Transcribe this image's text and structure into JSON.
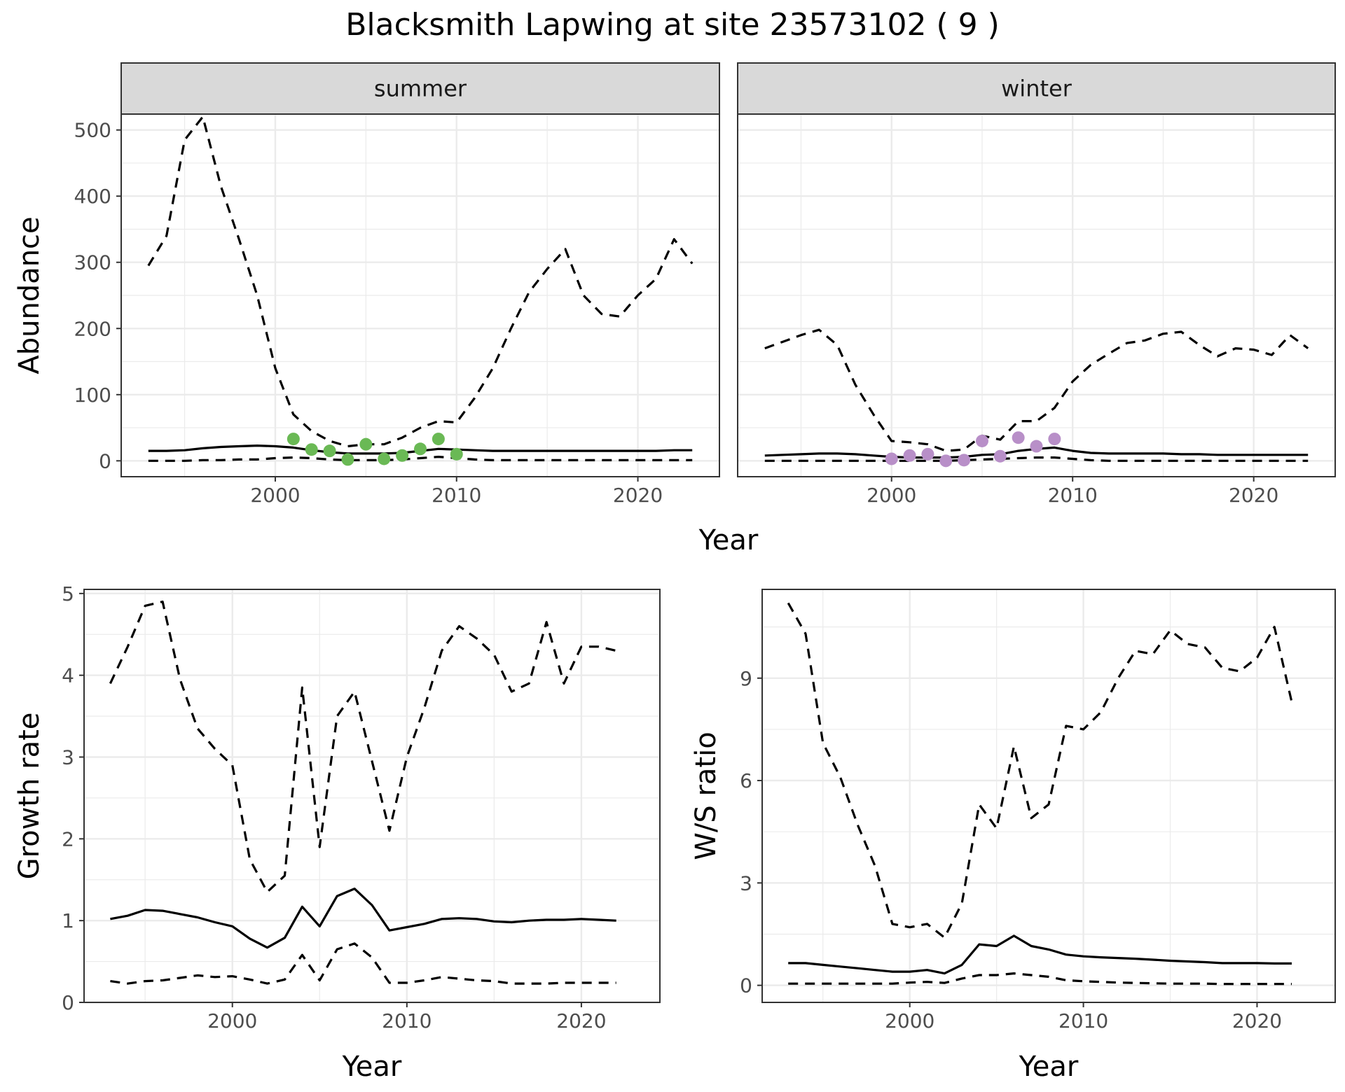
{
  "figure": {
    "title": "Blacksmith Lapwing at site 23573102 ( 9 )",
    "top_xlabel": "Year"
  },
  "colors": {
    "summer_points": "#6ab955",
    "winter_points": "#b88fc8",
    "lines": "#000000"
  },
  "chart_data": [
    {
      "type": "line",
      "panel": "summer",
      "strip": "summer",
      "ylabel": "Abundance",
      "xlabel": "",
      "xlim": [
        1991.5,
        2024.5
      ],
      "ylim": [
        -24,
        524
      ],
      "xticks": [
        2000,
        2010,
        2020
      ],
      "yticks": [
        0,
        100,
        200,
        300,
        400,
        500
      ],
      "grid": true,
      "x": [
        1993,
        1994,
        1995,
        1996,
        1997,
        1998,
        1999,
        2000,
        2001,
        2002,
        2003,
        2004,
        2005,
        2006,
        2007,
        2008,
        2009,
        2010,
        2011,
        2012,
        2013,
        2014,
        2015,
        2016,
        2017,
        2018,
        2019,
        2020,
        2021,
        2022,
        2023
      ],
      "series": [
        {
          "role": "upper",
          "values": [
            295,
            340,
            485,
            520,
            415,
            335,
            250,
            140,
            70,
            45,
            30,
            22,
            25,
            25,
            35,
            50,
            60,
            58,
            95,
            140,
            200,
            255,
            290,
            320,
            250,
            222,
            218,
            250,
            275,
            335,
            298
          ]
        },
        {
          "role": "mean",
          "values": [
            15,
            15,
            16,
            19,
            21,
            22,
            23,
            22,
            20,
            16,
            13,
            11,
            11,
            11,
            12,
            15,
            18,
            17,
            16,
            15,
            15,
            15,
            15,
            15,
            15,
            15,
            15,
            15,
            15,
            16,
            16
          ]
        },
        {
          "role": "lower",
          "values": [
            0,
            0,
            0,
            1,
            1,
            2,
            2,
            4,
            5,
            4,
            2,
            1,
            1,
            1,
            2,
            4,
            6,
            4,
            2,
            1,
            1,
            1,
            1,
            1,
            1,
            1,
            1,
            1,
            1,
            1,
            1
          ]
        }
      ],
      "points": {
        "x": [
          2001,
          2002,
          2003,
          2004,
          2005,
          2006,
          2007,
          2008,
          2009,
          2010
        ],
        "y": [
          33,
          17,
          15,
          2,
          25,
          3,
          8,
          18,
          33,
          10
        ]
      }
    },
    {
      "type": "line",
      "panel": "winter",
      "strip": "winter",
      "ylabel": "",
      "xlabel": "",
      "xlim": [
        1991.5,
        2024.5
      ],
      "ylim": [
        -24,
        524
      ],
      "xticks": [
        2000,
        2010,
        2020
      ],
      "yticks": [],
      "grid": true,
      "x": [
        1993,
        1994,
        1995,
        1996,
        1997,
        1998,
        1999,
        2000,
        2001,
        2002,
        2003,
        2004,
        2005,
        2006,
        2007,
        2008,
        2009,
        2010,
        2011,
        2012,
        2013,
        2014,
        2015,
        2016,
        2017,
        2018,
        2019,
        2020,
        2021,
        2022,
        2023
      ],
      "series": [
        {
          "role": "upper",
          "values": [
            170,
            180,
            190,
            198,
            175,
            115,
            70,
            30,
            28,
            25,
            15,
            17,
            38,
            32,
            60,
            60,
            80,
            120,
            145,
            162,
            178,
            182,
            192,
            195,
            175,
            158,
            170,
            168,
            160,
            190,
            170
          ]
        },
        {
          "role": "mean",
          "values": [
            8,
            9,
            10,
            11,
            11,
            10,
            8,
            6,
            5,
            5,
            5,
            6,
            9,
            10,
            15,
            18,
            20,
            15,
            12,
            11,
            11,
            11,
            11,
            10,
            10,
            9,
            9,
            9,
            9,
            9,
            9
          ]
        },
        {
          "role": "lower",
          "values": [
            0,
            0,
            0,
            0,
            0,
            0,
            0,
            0,
            0,
            0,
            0,
            1,
            2,
            3,
            4,
            5,
            5,
            3,
            1,
            0,
            0,
            0,
            0,
            0,
            0,
            0,
            0,
            0,
            0,
            0,
            0
          ]
        }
      ],
      "points": {
        "x": [
          2000,
          2001,
          2002,
          2003,
          2004,
          2005,
          2006,
          2007,
          2008,
          2009
        ],
        "y": [
          3,
          8,
          10,
          0,
          1,
          30,
          7,
          35,
          22,
          33
        ]
      }
    },
    {
      "type": "line",
      "panel": "growth",
      "ylabel": "Growth rate",
      "xlabel": "Year",
      "xlim": [
        1991.5,
        2024.5
      ],
      "ylim": [
        0,
        5.05
      ],
      "xticks": [
        2000,
        2010,
        2020
      ],
      "yticks": [
        0,
        1,
        2,
        3,
        4,
        5
      ],
      "grid": true,
      "x": [
        1993,
        1994,
        1995,
        1996,
        1997,
        1998,
        1999,
        2000,
        2001,
        2002,
        2003,
        2004,
        2005,
        2006,
        2007,
        2008,
        2009,
        2010,
        2011,
        2012,
        2013,
        2014,
        2015,
        2016,
        2017,
        2018,
        2019,
        2020,
        2021,
        2022
      ],
      "series": [
        {
          "role": "upper",
          "values": [
            3.9,
            4.35,
            4.85,
            4.9,
            3.95,
            3.35,
            3.1,
            2.9,
            1.75,
            1.35,
            1.55,
            3.85,
            1.9,
            3.5,
            3.8,
            2.95,
            2.1,
            3.0,
            3.6,
            4.3,
            4.6,
            4.45,
            4.25,
            3.8,
            3.9,
            4.65,
            3.9,
            4.35,
            4.35,
            4.3
          ]
        },
        {
          "role": "mean",
          "values": [
            1.02,
            1.06,
            1.13,
            1.12,
            1.08,
            1.04,
            0.98,
            0.93,
            0.78,
            0.67,
            0.79,
            1.17,
            0.93,
            1.3,
            1.39,
            1.19,
            0.88,
            0.92,
            0.96,
            1.02,
            1.03,
            1.02,
            0.99,
            0.98,
            1.0,
            1.01,
            1.01,
            1.02,
            1.01,
            1.0
          ]
        },
        {
          "role": "lower",
          "values": [
            0.26,
            0.23,
            0.26,
            0.27,
            0.3,
            0.33,
            0.31,
            0.32,
            0.28,
            0.23,
            0.28,
            0.58,
            0.27,
            0.65,
            0.72,
            0.55,
            0.24,
            0.24,
            0.27,
            0.31,
            0.29,
            0.27,
            0.26,
            0.23,
            0.23,
            0.23,
            0.24,
            0.24,
            0.24,
            0.24
          ]
        }
      ]
    },
    {
      "type": "line",
      "panel": "ratio",
      "ylabel": "W/S ratio",
      "xlabel": "Year",
      "xlim": [
        1991.5,
        2024.5
      ],
      "ylim": [
        -0.5,
        11.6
      ],
      "xticks": [
        2000,
        2010,
        2020
      ],
      "yticks": [
        0,
        3,
        6,
        9
      ],
      "grid": true,
      "x": [
        1993,
        1994,
        1995,
        1996,
        1997,
        1998,
        1999,
        2000,
        2001,
        2002,
        2003,
        2004,
        2005,
        2006,
        2007,
        2008,
        2009,
        2010,
        2011,
        2012,
        2013,
        2014,
        2015,
        2016,
        2017,
        2018,
        2019,
        2020,
        2021,
        2022
      ],
      "series": [
        {
          "role": "upper",
          "values": [
            11.2,
            10.3,
            7.1,
            6.1,
            4.7,
            3.5,
            1.8,
            1.7,
            1.8,
            1.4,
            2.4,
            5.3,
            4.6,
            7.0,
            4.9,
            5.3,
            7.6,
            7.5,
            8.0,
            9.0,
            9.8,
            9.7,
            10.4,
            10.0,
            9.9,
            9.3,
            9.2,
            9.6,
            10.5,
            8.3
          ]
        },
        {
          "role": "mean",
          "values": [
            0.65,
            0.65,
            0.6,
            0.55,
            0.5,
            0.45,
            0.4,
            0.4,
            0.45,
            0.35,
            0.6,
            1.2,
            1.15,
            1.45,
            1.15,
            1.05,
            0.9,
            0.85,
            0.82,
            0.8,
            0.78,
            0.75,
            0.72,
            0.7,
            0.68,
            0.65,
            0.65,
            0.65,
            0.64,
            0.64
          ]
        },
        {
          "role": "lower",
          "values": [
            0.05,
            0.05,
            0.05,
            0.05,
            0.05,
            0.05,
            0.05,
            0.08,
            0.1,
            0.07,
            0.2,
            0.3,
            0.3,
            0.35,
            0.3,
            0.25,
            0.15,
            0.12,
            0.1,
            0.08,
            0.07,
            0.06,
            0.05,
            0.05,
            0.05,
            0.04,
            0.04,
            0.04,
            0.04,
            0.04
          ]
        }
      ]
    }
  ]
}
